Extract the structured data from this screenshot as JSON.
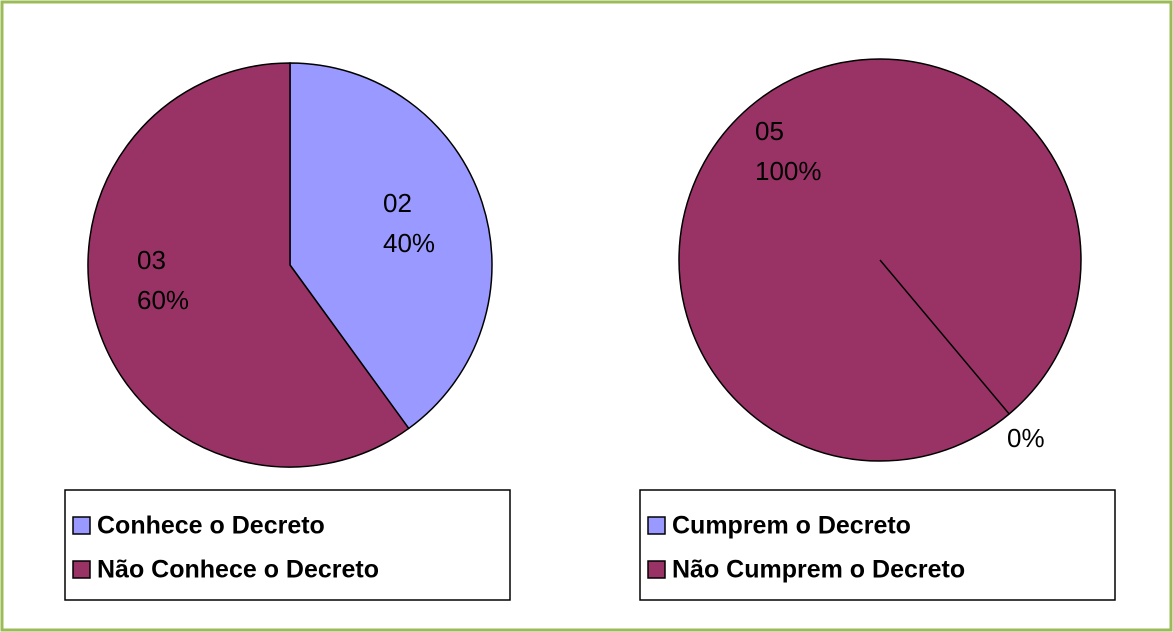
{
  "chart_data": [
    {
      "type": "pie",
      "categories": [
        "Conhece o Decreto",
        "Não Conhece o Decreto"
      ],
      "values": [
        2,
        3
      ],
      "value_labels": [
        "02",
        "03"
      ],
      "percents": [
        40,
        60
      ],
      "percent_labels": [
        "40%",
        "60%"
      ],
      "colors": [
        "#9999ff",
        "#993366"
      ],
      "legend": "bottom"
    },
    {
      "type": "pie",
      "categories": [
        "Cumprem o Decreto",
        "Não Cumprem o Decreto"
      ],
      "values": [
        0,
        5
      ],
      "value_labels": [
        null,
        "05"
      ],
      "percents": [
        0,
        100
      ],
      "percent_labels": [
        "0%",
        "100%"
      ],
      "colors": [
        "#9999ff",
        "#993366"
      ],
      "legend": "bottom"
    }
  ]
}
